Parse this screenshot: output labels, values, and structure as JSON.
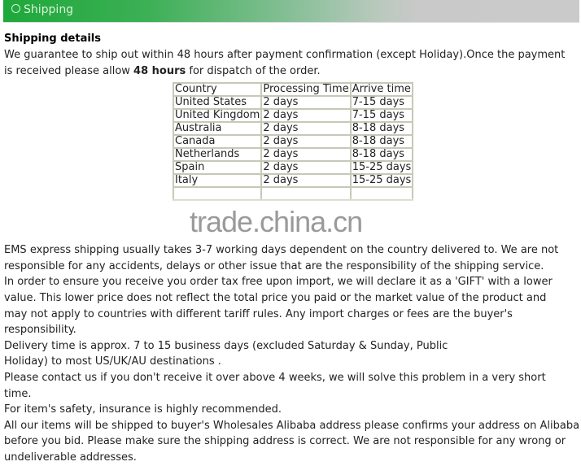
{
  "banner": {
    "title": "Shipping",
    "icon": "circle-icon"
  },
  "details": {
    "heading": "Shipping details",
    "intro_line1": "We guarantee to ship out within 48 hours after payment confirmation (except Holiday).Once the payment",
    "intro_line2_pre": "is received please allow ",
    "intro_line2_bold": "48 hours",
    "intro_line2_post": " for dispatch of the order."
  },
  "table": {
    "headers": [
      "Country",
      "Processing Time",
      "Arrive time"
    ],
    "rows": [
      [
        "United States",
        "2 days",
        "7-15 days"
      ],
      [
        "United Kingdom",
        "2 days",
        "7-15 days"
      ],
      [
        "Australia",
        "2 days",
        "8-18 days"
      ],
      [
        "Canada",
        "2 days",
        "8-18 days"
      ],
      [
        "Netherlands",
        "2 days",
        "8-18 days"
      ],
      [
        "Spain",
        "2 days",
        "15-25 days"
      ],
      [
        "Italy",
        "2 days",
        "15-25 days"
      ]
    ]
  },
  "watermark": "trade.china.cn",
  "paragraphs": [
    [
      "EMS express shipping usually takes 3-7 working days dependent on the country delivered to. We are not",
      "responsible for any accidents, delays or other issue that are the responsibility of the shipping service."
    ],
    [
      "In order to ensure you receive you order tax free upon import, we will declare it as a 'GIFT' with a lower",
      "value. This lower price does not reflect the total price you paid or the market value of the product and",
      "may not apply to countries with different tariff rules. Any import charges or fees are the buyer's",
      "responsibility."
    ],
    [
      "Delivery time is approx. 7 to 15 business days (excluded Saturday & Sunday, Public",
      "Holiday) to most US/UK/AU destinations ."
    ],
    [
      "Please contact us if you don't receive it over above 4 weeks, we will solve this problem in a very short",
      "time."
    ],
    [
      "For item's safety, insurance is highly recommended."
    ],
    [
      "All our items will be shipped to buyer's Wholesales Alibaba address please confirms your address on Alibaba",
      "before you bid. Please make sure the shipping address is correct. We are not responsible for any wrong or",
      "undeliverable addresses."
    ]
  ]
}
